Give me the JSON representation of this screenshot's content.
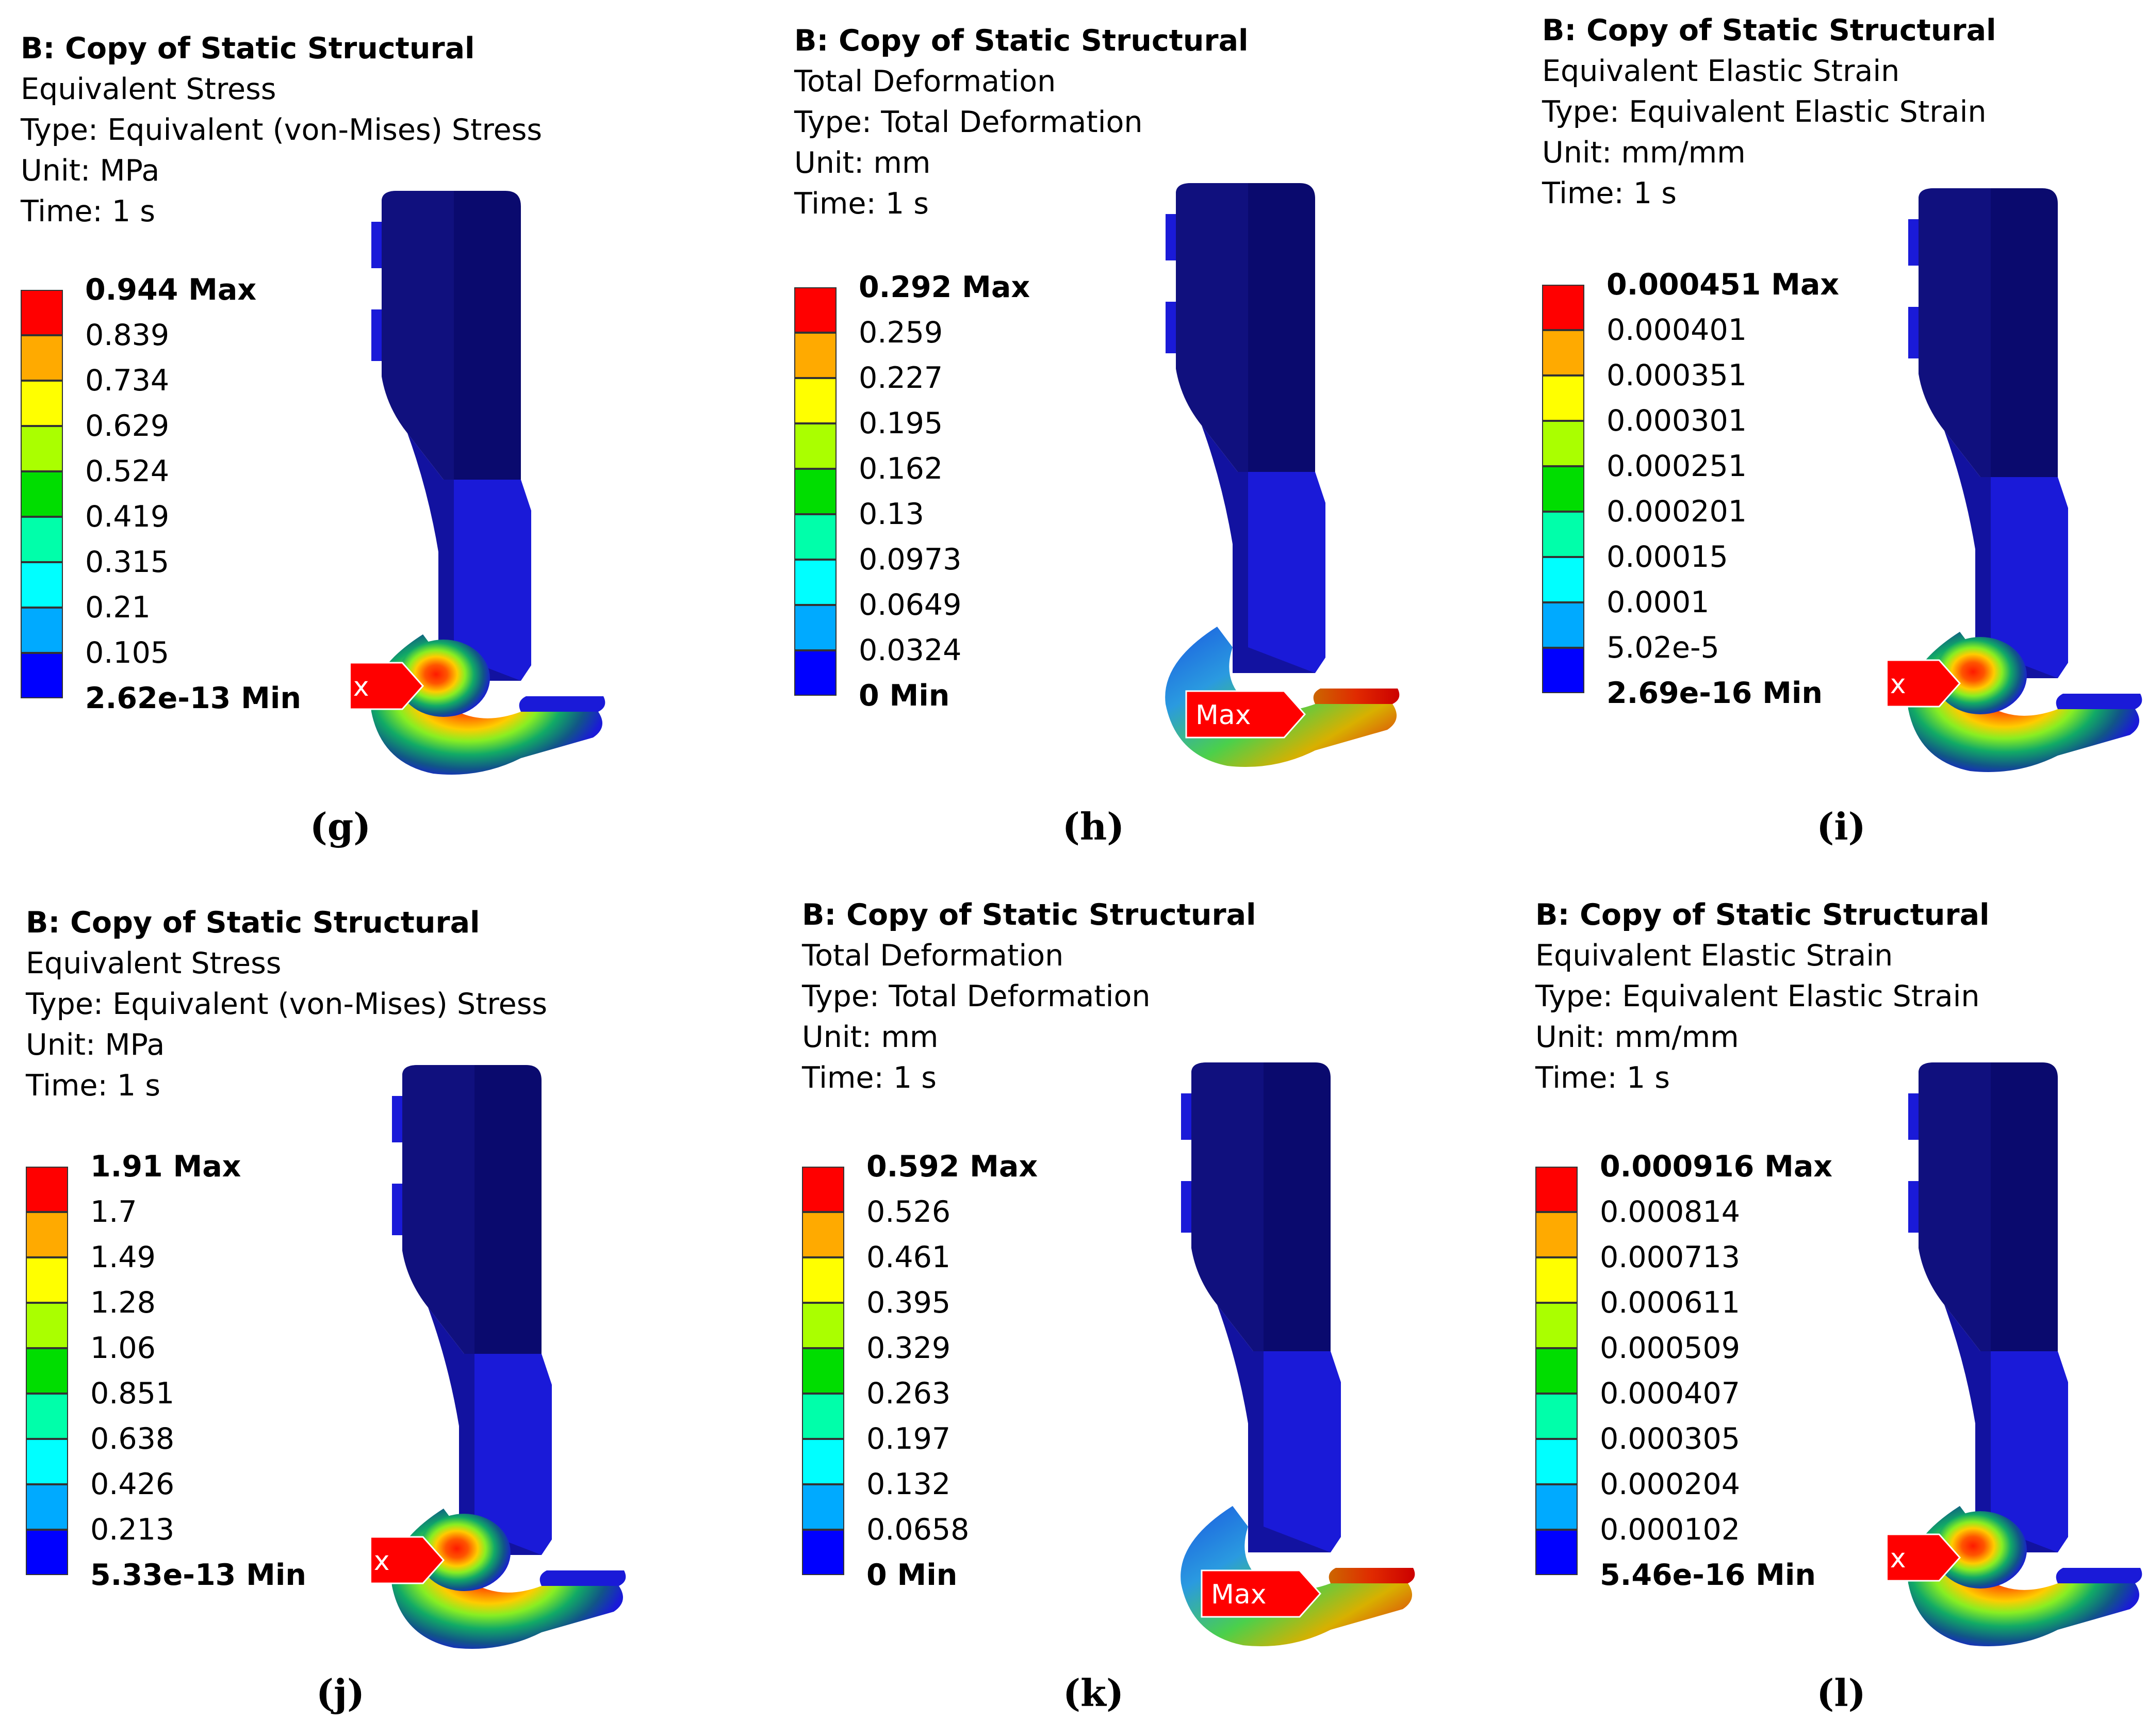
{
  "panels": [
    {
      "id": "g",
      "caption": "(g)",
      "header": {
        "title": "B: Copy of Static Structural",
        "result": "Equivalent Stress",
        "type": "Type: Equivalent (von-Mises) Stress",
        "unit": "Unit: MPa",
        "time": "Time: 1 s"
      },
      "legend": [
        "0.944 Max",
        "0.839",
        "0.734",
        "0.629",
        "0.524",
        "0.419",
        "0.315",
        "0.21",
        "0.105",
        "2.62e-13 Min"
      ],
      "probe_label": "Max",
      "max_location": "inner-arc"
    },
    {
      "id": "h",
      "caption": "(h)",
      "header": {
        "title": "B: Copy of Static Structural",
        "result": "Total Deformation",
        "type": "Type: Total Deformation",
        "unit": "Unit: mm",
        "time": "Time: 1 s"
      },
      "legend": [
        "0.292 Max",
        "0.259",
        "0.227",
        "0.195",
        "0.162",
        "0.13",
        "0.0973",
        "0.0649",
        "0.0324",
        "0 Min"
      ],
      "probe_label": "Max",
      "max_location": "hook-tip"
    },
    {
      "id": "i",
      "caption": "(i)",
      "header": {
        "title": "B: Copy of Static Structural",
        "result": "Equivalent Elastic Strain",
        "type": "Type: Equivalent Elastic Strain",
        "unit": "Unit: mm/mm",
        "time": "Time: 1 s"
      },
      "legend": [
        "0.000451 Max",
        "0.000401",
        "0.000351",
        "0.000301",
        "0.000251",
        "0.000201",
        "0.00015",
        "0.0001",
        "5.02e-5",
        "2.69e-16 Min"
      ],
      "probe_label": "Max",
      "max_location": "inner-arc"
    },
    {
      "id": "j",
      "caption": "(j)",
      "header": {
        "title": "B: Copy of Static Structural",
        "result": "Equivalent Stress",
        "type": "Type: Equivalent (von-Mises) Stress",
        "unit": "Unit: MPa",
        "time": "Time: 1 s"
      },
      "legend": [
        "1.91 Max",
        "1.7",
        "1.49",
        "1.28",
        "1.06",
        "0.851",
        "0.638",
        "0.426",
        "0.213",
        "5.33e-13 Min"
      ],
      "probe_label": "Max",
      "max_location": "inner-arc"
    },
    {
      "id": "k",
      "caption": "(k)",
      "header": {
        "title": "B: Copy of Static Structural",
        "result": "Total Deformation",
        "type": "Type: Total Deformation",
        "unit": "Unit: mm",
        "time": "Time: 1 s"
      },
      "legend": [
        "0.592 Max",
        "0.526",
        "0.461",
        "0.395",
        "0.329",
        "0.263",
        "0.197",
        "0.132",
        "0.0658",
        "0 Min"
      ],
      "probe_label": "Max",
      "max_location": "hook-tip"
    },
    {
      "id": "l",
      "caption": "(l)",
      "header": {
        "title": "B: Copy of Static Structural",
        "result": "Equivalent Elastic Strain",
        "type": "Type: Equivalent Elastic Strain",
        "unit": "Unit: mm/mm",
        "time": "Time: 1 s"
      },
      "legend": [
        "0.000916 Max",
        "0.000814",
        "0.000713",
        "0.000611",
        "0.000509",
        "0.000407",
        "0.000305",
        "0.000204",
        "0.000102",
        "5.46e-16 Min"
      ],
      "probe_label": "Max",
      "max_location": "inner-arc"
    }
  ],
  "colors": {
    "legend_scale": [
      "#ff0000",
      "#ffaa00",
      "#ffff00",
      "#aaff00",
      "#00dd00",
      "#00ffaa",
      "#00ffff",
      "#00aaff",
      "#0000ff"
    ],
    "body_dark": "#0a0a6e",
    "body_mid": "#1a1ad8",
    "probe": "#ff0000"
  }
}
